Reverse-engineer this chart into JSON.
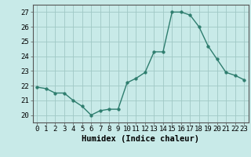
{
  "x": [
    0,
    1,
    2,
    3,
    4,
    5,
    6,
    7,
    8,
    9,
    10,
    11,
    12,
    13,
    14,
    15,
    16,
    17,
    18,
    19,
    20,
    21,
    22,
    23
  ],
  "y": [
    21.9,
    21.8,
    21.5,
    21.5,
    21.0,
    20.6,
    20.0,
    20.3,
    20.4,
    20.4,
    22.2,
    22.5,
    22.9,
    24.3,
    24.3,
    27.0,
    27.0,
    26.8,
    26.0,
    24.7,
    23.8,
    22.9,
    22.7,
    22.4
  ],
  "line_color": "#2e7d6e",
  "marker": "o",
  "markersize": 2.5,
  "linewidth": 1.0,
  "bg_color": "#c8eae8",
  "grid_color": "#a0c8c5",
  "xlabel": "Humidex (Indice chaleur)",
  "xlim": [
    -0.5,
    23.5
  ],
  "ylim": [
    19.5,
    27.5
  ],
  "yticks": [
    20,
    21,
    22,
    23,
    24,
    25,
    26,
    27
  ],
  "xticks": [
    0,
    1,
    2,
    3,
    4,
    5,
    6,
    7,
    8,
    9,
    10,
    11,
    12,
    13,
    14,
    15,
    16,
    17,
    18,
    19,
    20,
    21,
    22,
    23
  ],
  "tick_labelsize": 6.5,
  "xlabel_fontsize": 7.5,
  "spine_color": "#555555"
}
